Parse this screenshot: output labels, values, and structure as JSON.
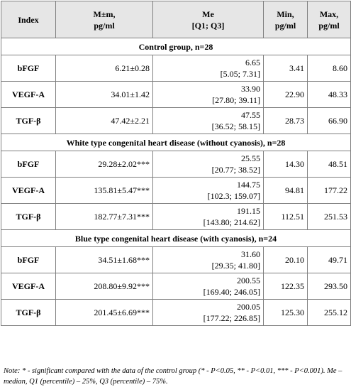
{
  "headers": {
    "index": "Index",
    "mean_line1": "M±m,",
    "mean_line2": "pg/ml",
    "median_line1": "Me",
    "median_line2": "[Q1; Q3]",
    "min_line1": "Min,",
    "min_line2": "pg/ml",
    "max_line1": "Max,",
    "max_line2": "pg/ml"
  },
  "groups": [
    {
      "title": "Control group, n=28",
      "rows": [
        {
          "index": "bFGF",
          "mean": "6.21±0.28",
          "median": "6.65",
          "quartiles": "[5.05; 7.31]",
          "min": "3.41",
          "max": "8.60"
        },
        {
          "index": "VEGF-A",
          "mean": "34.01±1.42",
          "median": "33.90",
          "quartiles": "[27.80; 39.11]",
          "min": "22.90",
          "max": "48.33"
        },
        {
          "index": "TGF-β",
          "mean": "47.42±2.21",
          "median": "47.55",
          "quartiles": "[36.52; 58.15]",
          "min": "28.73",
          "max": "66.90"
        }
      ]
    },
    {
      "title": "White type congenital heart disease (without cyanosis), n=28",
      "rows": [
        {
          "index": "bFGF",
          "mean": "29.28±2.02***",
          "median": "25.55",
          "quartiles": "[20.77; 38.52]",
          "min": "14.30",
          "max": "48.51"
        },
        {
          "index": "VEGF-A",
          "mean": "135.81±5.47***",
          "median": "144.75",
          "quartiles": "[102.3; 159.07]",
          "min": "94.81",
          "max": "177.22"
        },
        {
          "index": "TGF-β",
          "mean": "182.77±7.31***",
          "median": "191.15",
          "quartiles": "[143.80; 214.62]",
          "min": "112.51",
          "max": "251.53"
        }
      ]
    },
    {
      "title": "Blue type congenital heart disease (with cyanosis), n=24",
      "rows": [
        {
          "index": "bFGF",
          "mean": "34.51±1.68***",
          "median": "31.60",
          "quartiles": "[29.35; 41.80]",
          "min": "20.10",
          "max": "49.71"
        },
        {
          "index": "VEGF-A",
          "mean": "208.80±9.92***",
          "median": "200.55",
          "quartiles": "[169.40; 246.05]",
          "min": "122.35",
          "max": "293.50"
        },
        {
          "index": "TGF-β",
          "mean": "201.45±6.69***",
          "median": "200.05",
          "quartiles": "[177.22; 226.85]",
          "min": "125.30",
          "max": "255.12"
        }
      ]
    }
  ],
  "note": "Note: * - significant compared with the data of the control group (* - P<0.05, ** - P<0.01, *** - P<0.001). Me – median, Q1 (percentile) – 25%, Q3 (percentile) – 75%."
}
